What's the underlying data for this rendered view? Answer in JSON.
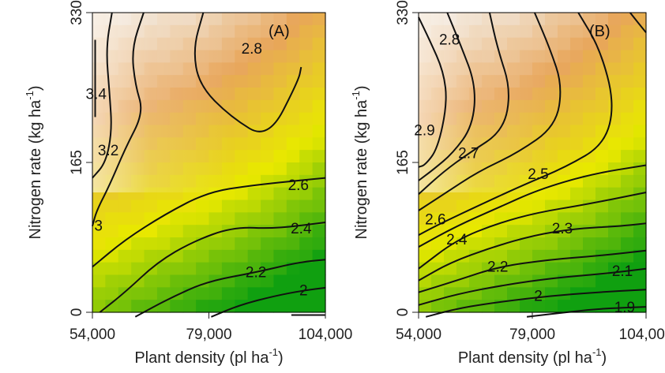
{
  "chart_data": [
    {
      "type": "heatmap",
      "panel_label": "(A)",
      "xlabel": "Plant density (pl ha",
      "xlabel_exponent": "-1",
      "xlabel_close": ")",
      "ylabel": "Nitrogen rate (kg ha",
      "ylabel_exponent": "-1",
      "ylabel_close": ")",
      "xlim": [
        54000,
        104000
      ],
      "ylim": [
        0,
        330
      ],
      "x_ticks": [
        54000,
        79000,
        104000
      ],
      "x_tick_labels": [
        "54,000",
        "79,000",
        "104,000"
      ],
      "y_ticks": [
        0,
        165,
        330
      ],
      "y_tick_labels": [
        "0",
        "165",
        "330"
      ],
      "color_scale": [
        "#10a010",
        "#e8e800",
        "#e8a65a",
        "#f2f2f2"
      ],
      "contours": [
        {
          "label": "3.4",
          "label_at": [
            54800,
            240
          ],
          "points": [
            [
              54600,
              300
            ],
            [
              54600,
              255
            ],
            [
              54600,
              215
            ]
          ]
        },
        {
          "label": "3.2",
          "label_at": [
            57400,
            178
          ],
          "points": [
            [
              58200,
              330
            ],
            [
              56900,
              290
            ],
            [
              57700,
              240
            ],
            [
              58200,
              200
            ],
            [
              56900,
              165
            ],
            [
              54000,
              148
            ]
          ]
        },
        {
          "label": "3",
          "label_at": [
            55300,
            95
          ],
          "points": [
            [
              65000,
              330
            ],
            [
              62400,
              290
            ],
            [
              63200,
              250
            ],
            [
              65000,
              220
            ],
            [
              61000,
              180
            ],
            [
              57700,
              140
            ],
            [
              54900,
              112
            ],
            [
              54000,
              95
            ]
          ]
        },
        {
          "label": "2.8",
          "label_at": [
            88200,
            290
          ],
          "points": [
            [
              77800,
              330
            ],
            [
              75600,
              290
            ],
            [
              76900,
              250
            ],
            [
              83700,
              215
            ],
            [
              91700,
              190
            ],
            [
              98200,
              255
            ],
            [
              98800,
              270
            ]
          ]
        },
        {
          "label": "2.6",
          "label_at": [
            98200,
            140
          ],
          "points": [
            [
              54000,
              50
            ],
            [
              61000,
              80
            ],
            [
              69600,
              108
            ],
            [
              78600,
              132
            ],
            [
              88200,
              140
            ],
            [
              104000,
              148
            ]
          ]
        },
        {
          "label": "2.4",
          "label_at": [
            98800,
            92
          ],
          "points": [
            [
              55600,
              0
            ],
            [
              61000,
              22
            ],
            [
              67900,
              55
            ],
            [
              75600,
              78
            ],
            [
              84200,
              94
            ],
            [
              93100,
              92
            ],
            [
              104000,
              99
            ]
          ]
        },
        {
          "label": "2.2",
          "label_at": [
            89100,
            44
          ],
          "points": [
            [
              63200,
              -5
            ],
            [
              70400,
              15
            ],
            [
              78600,
              34
            ],
            [
              89100,
              44
            ],
            [
              98200,
              55
            ],
            [
              104000,
              58
            ]
          ]
        },
        {
          "label": "2",
          "label_at": [
            99300,
            24
          ],
          "points": [
            [
              79500,
              -5
            ],
            [
              85600,
              8
            ],
            [
              93100,
              18
            ],
            [
              99300,
              24
            ],
            [
              104000,
              27
            ]
          ]
        },
        {
          "label": "",
          "label_at": null,
          "points": [
            [
              96700,
              -3
            ],
            [
              104000,
              -3
            ]
          ]
        }
      ]
    },
    {
      "type": "heatmap",
      "panel_label": "(B)",
      "xlabel": "Plant density (pl ha",
      "xlabel_exponent": "-1",
      "xlabel_close": ")",
      "ylabel": "Nitrogen rate (kg ha",
      "ylabel_exponent": "-1",
      "ylabel_close": ")",
      "xlim": [
        54000,
        104000
      ],
      "ylim": [
        0,
        330
      ],
      "x_ticks": [
        54000,
        79000,
        104000
      ],
      "x_tick_labels": [
        "54,000",
        "79,000",
        "104,000"
      ],
      "y_ticks": [
        0,
        165,
        330
      ],
      "y_tick_labels": [
        "0",
        "165",
        "330"
      ],
      "color_scale": [
        "#10a010",
        "#e8e800",
        "#e8a65a",
        "#f2f2f2"
      ],
      "contours": [
        {
          "label": "2.9",
          "label_at": [
            55300,
            200
          ],
          "points": [
            [
              54000,
              325
            ],
            [
              56400,
              300
            ],
            [
              59500,
              265
            ],
            [
              60300,
              230
            ],
            [
              58200,
              180
            ],
            [
              55400,
              162
            ],
            [
              54000,
              160
            ]
          ]
        },
        {
          "label": "2.8",
          "label_at": [
            60800,
            300
          ],
          "points": [
            [
              60300,
              330
            ],
            [
              63200,
              295
            ],
            [
              66600,
              250
            ],
            [
              65900,
              205
            ],
            [
              61500,
              175
            ],
            [
              57200,
              157
            ],
            [
              54000,
              145
            ]
          ]
        },
        {
          "label": "2.7",
          "label_at": [
            65000,
            175
          ],
          "points": [
            [
              69600,
              330
            ],
            [
              71400,
              290
            ],
            [
              74300,
              245
            ],
            [
              72700,
              200
            ],
            [
              65000,
              175
            ],
            [
              59500,
              155
            ],
            [
              54000,
              130
            ]
          ]
        },
        {
          "label": "",
          "label_at": null,
          "points": [
            [
              79500,
              330
            ],
            [
              82900,
              290
            ],
            [
              85600,
              250
            ],
            [
              84200,
              205
            ],
            [
              75600,
              175
            ],
            [
              67100,
              155
            ],
            [
              59500,
              130
            ],
            [
              54000,
              112
            ]
          ]
        },
        {
          "label": "2.5",
          "label_at": [
            80300,
            152
          ],
          "points": [
            [
              89100,
              330
            ],
            [
              93900,
              290
            ],
            [
              97100,
              230
            ],
            [
              94900,
              185
            ],
            [
              86400,
              160
            ],
            [
              76900,
              140
            ],
            [
              66100,
              115
            ],
            [
              57700,
              95
            ],
            [
              54000,
              85
            ]
          ]
        },
        {
          "label": "2.6",
          "label_at": [
            57700,
            102
          ],
          "points": []
        },
        {
          "label": "",
          "label_at": null,
          "points": [
            [
              54000,
              72
            ],
            [
              62400,
              95
            ],
            [
              71400,
              115
            ],
            [
              80300,
              135
            ],
            [
              91700,
              152
            ],
            [
              104000,
              162
            ]
          ]
        },
        {
          "label": "2.4",
          "label_at": [
            62400,
            80
          ],
          "points": [
            [
              54000,
              48
            ],
            [
              62400,
              80
            ],
            [
              71400,
              98
            ],
            [
              80300,
              110
            ],
            [
              90000,
              118
            ],
            [
              104000,
              132
            ]
          ]
        },
        {
          "label": "2.3",
          "label_at": [
            85600,
            92
          ],
          "points": [
            [
              54000,
              35
            ],
            [
              61000,
              55
            ],
            [
              70400,
              72
            ],
            [
              79500,
              85
            ],
            [
              88200,
              92
            ],
            [
              98800,
              95
            ],
            [
              104000,
              98
            ]
          ]
        },
        {
          "label": "2.2",
          "label_at": [
            71400,
            50
          ],
          "points": [
            [
              54000,
              22
            ],
            [
              62400,
              35
            ],
            [
              71400,
              50
            ],
            [
              82900,
              58
            ],
            [
              93100,
              62
            ],
            [
              104000,
              68
            ]
          ]
        },
        {
          "label": "2.1",
          "label_at": [
            98800,
            45
          ],
          "points": [
            [
              54000,
              8
            ],
            [
              62400,
              20
            ],
            [
              72700,
              30
            ],
            [
              84200,
              38
            ],
            [
              93900,
              42
            ],
            [
              104000,
              48
            ]
          ]
        },
        {
          "label": "2",
          "label_at": [
            80300,
            18
          ],
          "points": [
            [
              55600,
              -5
            ],
            [
              63200,
              5
            ],
            [
              72700,
              12
            ],
            [
              82900,
              18
            ],
            [
              93100,
              22
            ],
            [
              104000,
              25
            ]
          ]
        },
        {
          "label": "1.9",
          "label_at": [
            99300,
            5
          ],
          "points": [
            [
              77800,
              -5
            ],
            [
              86400,
              0
            ],
            [
              93900,
              4
            ],
            [
              104000,
              6
            ]
          ]
        },
        {
          "label": "",
          "label_at": null,
          "points": [
            [
              100500,
              330
            ],
            [
              104000,
              308
            ]
          ]
        }
      ]
    }
  ]
}
